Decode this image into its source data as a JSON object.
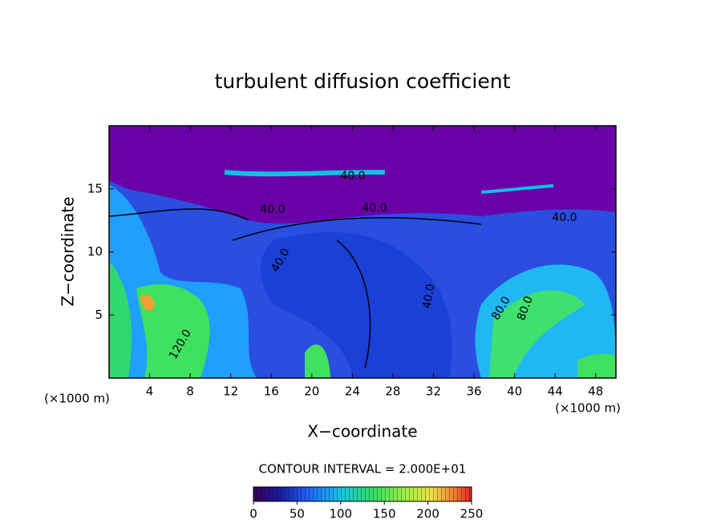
{
  "chart_data": {
    "type": "contour",
    "title": "turbulent diffusion coefficient",
    "x_label": "X−coordinate",
    "y_label": "Z−coordinate",
    "x_unit": "(×1000 m)",
    "y_unit": "(×1000 m)",
    "xlim": [
      0,
      50
    ],
    "xticks": [
      4,
      8,
      12,
      16,
      20,
      24,
      28,
      32,
      36,
      40,
      44,
      48
    ],
    "ylim": [
      0,
      20
    ],
    "yticks": [
      5,
      10,
      15
    ],
    "contour_labels": [
      "40.0",
      "40.0",
      "40.0",
      "40.0",
      "40.0",
      "40.0",
      "80.0",
      "80.0",
      "120.0"
    ],
    "colorbar": {
      "title": "CONTOUR INTERVAL = 2.000E+01",
      "lim": [
        0,
        250
      ],
      "ticks": [
        0,
        50,
        100,
        150,
        200,
        250
      ]
    }
  }
}
